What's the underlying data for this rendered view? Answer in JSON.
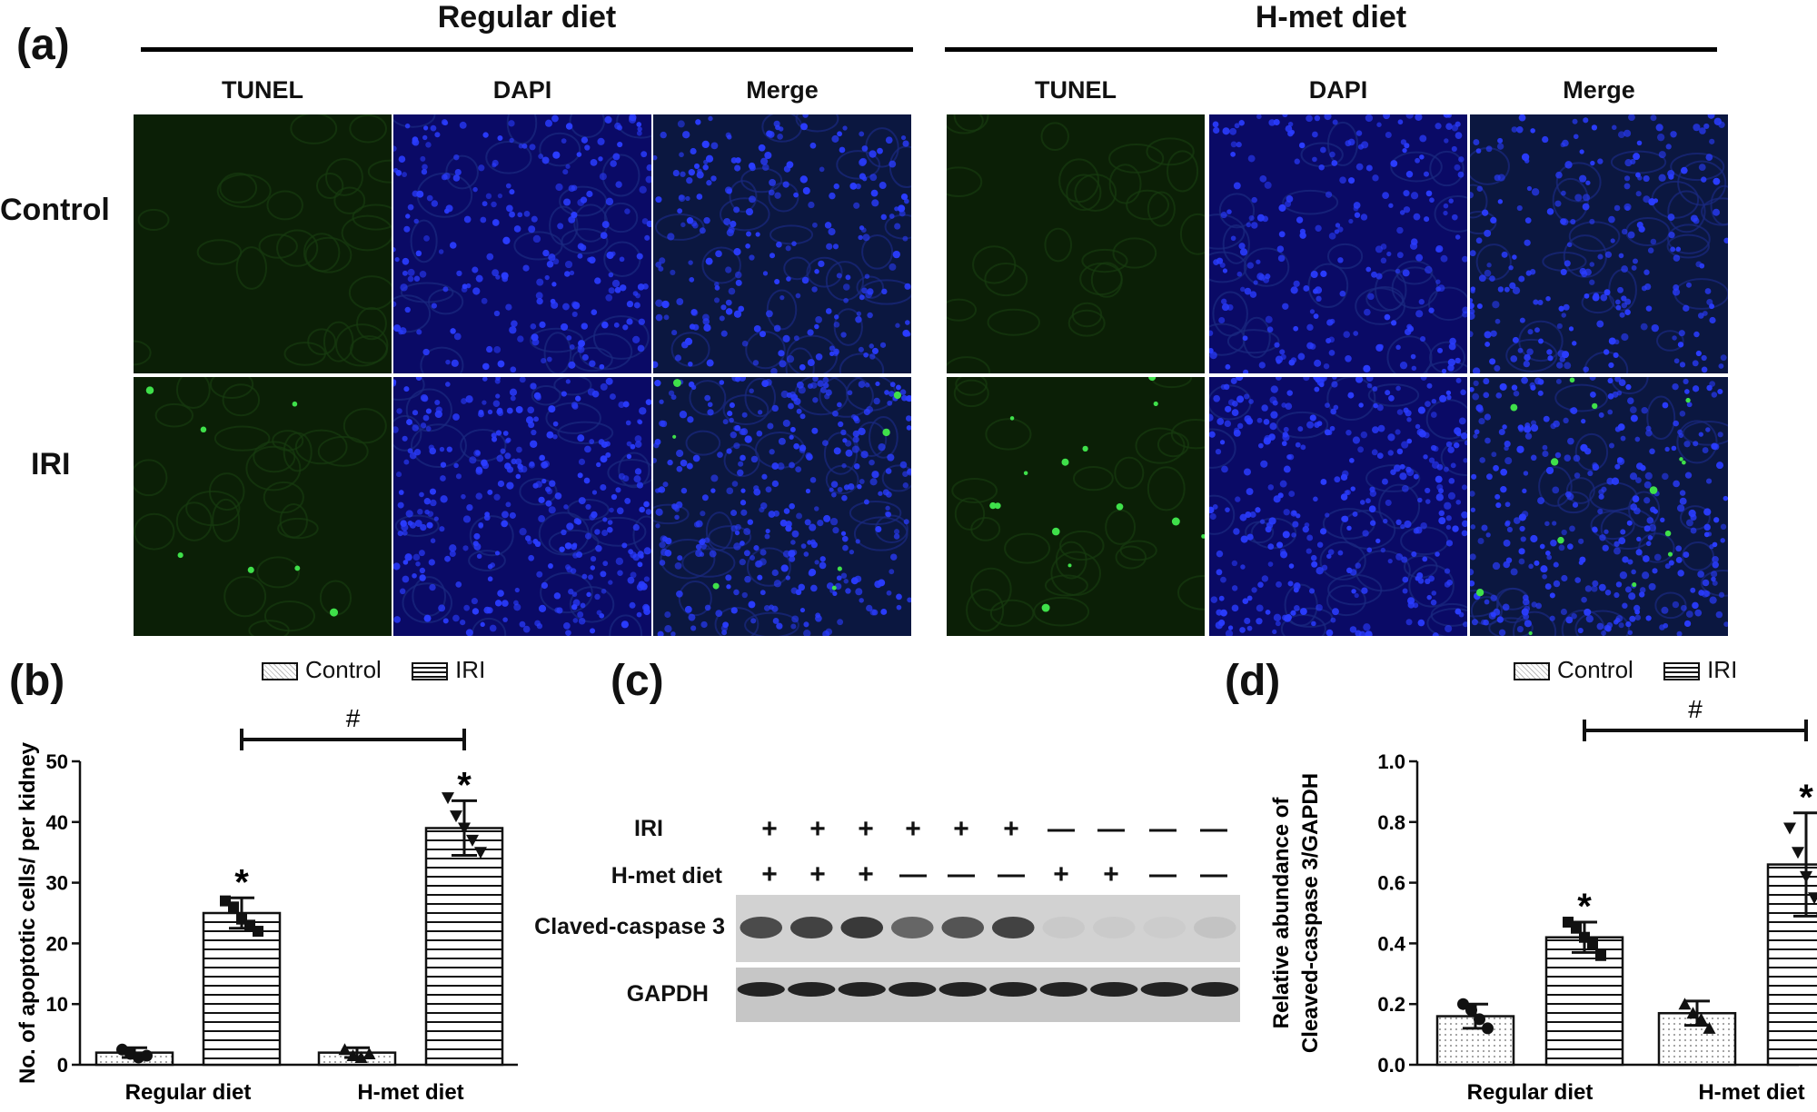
{
  "panel_a": {
    "label": "(a)",
    "groups": [
      {
        "title": "Regular diet",
        "columns": [
          "TUNEL",
          "DAPI",
          "Merge"
        ]
      },
      {
        "title": "H-met diet",
        "columns": [
          "TUNEL",
          "DAPI",
          "Merge"
        ]
      }
    ],
    "rows": [
      "Control",
      "IRI"
    ],
    "colors": {
      "tunel": "#0b1f06",
      "dapi": "#0a0a66",
      "merge": "#0b1740",
      "nucleus": "#2a3cff",
      "apoptotic": "#3fe04a"
    }
  },
  "panel_b": {
    "label": "(b)",
    "legend": [
      "Control",
      "IRI"
    ],
    "significance": "#",
    "star": "*",
    "chart_data": {
      "type": "bar",
      "categories": [
        "Regular diet",
        "H-met diet"
      ],
      "series": [
        {
          "name": "Control",
          "values": [
            2,
            2
          ],
          "errors": [
            0.8,
            0.8
          ],
          "points": [
            [
              2.5,
              1.8,
              1.2,
              1.5
            ],
            [
              2.5,
              1.5,
              1.2,
              1.8
            ]
          ]
        },
        {
          "name": "IRI",
          "values": [
            25,
            39
          ],
          "errors": [
            2.5,
            4.5
          ],
          "points": [
            [
              27,
              26,
              24,
              23,
              22
            ],
            [
              44,
              41,
              39,
              37,
              35
            ]
          ]
        }
      ],
      "ylabel": "No. of apoptotic cells/ per kidney",
      "ylim": [
        0,
        50
      ],
      "yticks": [
        "0",
        "10",
        "20",
        "30",
        "40",
        "50"
      ]
    }
  },
  "panel_c": {
    "label": "(c)",
    "rows": [
      {
        "label": "IRI",
        "signs": [
          "+",
          "+",
          "+",
          "+",
          "+",
          "+",
          "—",
          "—",
          "—",
          "—"
        ]
      },
      {
        "label": "H-met diet",
        "signs": [
          "+",
          "+",
          "+",
          "—",
          "—",
          "—",
          "+",
          "+",
          "—",
          "—"
        ]
      }
    ],
    "blots": [
      "Claved-caspase 3",
      "GAPDH"
    ],
    "caspase_band_intensity": [
      0.75,
      0.8,
      0.85,
      0.6,
      0.7,
      0.8,
      0.05,
      0.04,
      0.03,
      0.08
    ],
    "gapdh_band_intensity": [
      0.9,
      0.9,
      0.9,
      0.9,
      0.9,
      0.9,
      0.9,
      0.9,
      0.9,
      0.9
    ]
  },
  "panel_d": {
    "label": "(d)",
    "legend": [
      "Control",
      "IRI"
    ],
    "significance": "#",
    "star": "*",
    "chart_data": {
      "type": "bar",
      "categories": [
        "Regular diet",
        "H-met diet"
      ],
      "series": [
        {
          "name": "Control",
          "values": [
            0.16,
            0.17
          ],
          "errors": [
            0.04,
            0.04
          ],
          "points": [
            [
              0.2,
              0.18,
              0.15,
              0.12
            ],
            [
              0.2,
              0.17,
              0.15,
              0.12
            ]
          ]
        },
        {
          "name": "IRI",
          "values": [
            0.42,
            0.66
          ],
          "errors": [
            0.05,
            0.17
          ],
          "points": [
            [
              0.47,
              0.45,
              0.42,
              0.4,
              0.36
            ],
            [
              0.78,
              0.7,
              0.62,
              0.55,
              0.48
            ]
          ]
        }
      ],
      "ylabel_lines": [
        "Relative abundance of",
        "Cleaved-caspase 3/GAPDH"
      ],
      "ylim": [
        0,
        1.0
      ],
      "yticks": [
        "0.0",
        "0.2",
        "0.4",
        "0.6",
        "0.8",
        "1.0"
      ]
    }
  }
}
